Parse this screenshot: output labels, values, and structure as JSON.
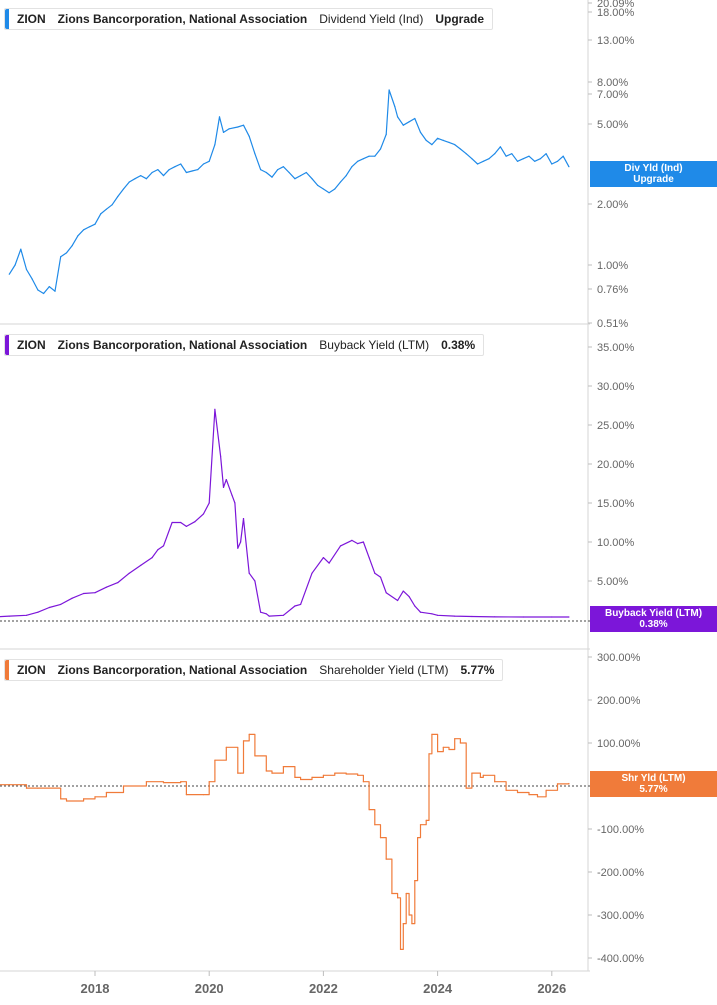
{
  "colors": {
    "dividend": "#1f8ae8",
    "buyback": "#7c16d9",
    "shareholder": "#f07b3a",
    "axis": "#9a9a9a",
    "text": "#666666"
  },
  "panels": [
    {
      "ticker": "ZION",
      "company": "Zions Bancorporation, National Association",
      "metric": "Dividend Yield (Ind)",
      "value": "Upgrade",
      "tag_lines": [
        "Div Yld (Ind)",
        "Upgrade"
      ],
      "tag_behind": "3.",
      "ticks": [
        "20.09%",
        "18.00%",
        "13.00%",
        "8.00%",
        "7.00%",
        "5.00%",
        "2.00%",
        "1.00%",
        "0.76%",
        "0.51%"
      ]
    },
    {
      "ticker": "ZION",
      "company": "Zions Bancorporation, National Association",
      "metric": "Buyback Yield (LTM)",
      "value": "0.38%",
      "tag_lines": [
        "Buyback Yield (LTM)",
        "0.38%"
      ],
      "ticks": [
        "35.00%",
        "30.00%",
        "25.00%",
        "20.00%",
        "15.00%",
        "10.00%",
        "5.00%"
      ]
    },
    {
      "ticker": "ZION",
      "company": "Zions Bancorporation, National Association",
      "metric": "Shareholder Yield (LTM)",
      "value": "5.77%",
      "tag_lines": [
        "Shr Yld (LTM)",
        "5.77%"
      ],
      "tag_behind": "0.00%",
      "ticks": [
        "300.00%",
        "200.00%",
        "100.00%",
        "-100.00%",
        "-200.00%",
        "-300.00%",
        "-400.00%"
      ]
    }
  ],
  "x_axis": {
    "labels": [
      "2018",
      "2020",
      "2022",
      "2024",
      "2026"
    ]
  },
  "chart_data": [
    {
      "type": "line",
      "scale": "log",
      "series": [
        {
          "name": "Dividend Yield (Ind)",
          "x": [
            2016.5,
            2016.6,
            2016.7,
            2016.8,
            2016.9,
            2017.0,
            2017.1,
            2017.2,
            2017.3,
            2017.4,
            2017.5,
            2017.6,
            2017.7,
            2017.8,
            2017.9,
            2018.0,
            2018.1,
            2018.2,
            2018.3,
            2018.4,
            2018.5,
            2018.6,
            2018.7,
            2018.8,
            2018.9,
            2019.0,
            2019.1,
            2019.2,
            2019.3,
            2019.4,
            2019.5,
            2019.6,
            2019.7,
            2019.8,
            2019.9,
            2020.0,
            2020.1,
            2020.18,
            2020.25,
            2020.35,
            2020.5,
            2020.6,
            2020.7,
            2020.8,
            2020.9,
            2021.0,
            2021.1,
            2021.2,
            2021.3,
            2021.4,
            2021.5,
            2021.6,
            2021.7,
            2021.8,
            2021.9,
            2022.0,
            2022.1,
            2022.2,
            2022.3,
            2022.4,
            2022.5,
            2022.6,
            2022.7,
            2022.8,
            2022.9,
            2023.0,
            2023.1,
            2023.15,
            2023.25,
            2023.3,
            2023.4,
            2023.5,
            2023.6,
            2023.7,
            2023.8,
            2023.9,
            2024.0,
            2024.1,
            2024.2,
            2024.3,
            2024.4,
            2024.5,
            2024.6,
            2024.7,
            2024.8,
            2024.9,
            2025.0,
            2025.1,
            2025.2,
            2025.3,
            2025.4,
            2025.5,
            2025.6,
            2025.7,
            2025.8,
            2025.9,
            2026.0,
            2026.1,
            2026.2,
            2026.3
          ],
          "values": [
            0.9,
            1.0,
            1.2,
            0.95,
            0.85,
            0.75,
            0.72,
            0.78,
            0.74,
            1.1,
            1.15,
            1.25,
            1.4,
            1.5,
            1.55,
            1.6,
            1.8,
            1.9,
            2.0,
            2.2,
            2.4,
            2.6,
            2.7,
            2.8,
            2.7,
            2.9,
            3.0,
            2.8,
            3.0,
            3.1,
            3.2,
            2.9,
            2.95,
            3.0,
            3.2,
            3.3,
            4.0,
            5.5,
            4.6,
            4.8,
            4.9,
            5.0,
            4.4,
            3.6,
            3.0,
            2.9,
            2.75,
            3.0,
            3.1,
            2.9,
            2.7,
            2.8,
            2.9,
            2.7,
            2.5,
            2.4,
            2.3,
            2.4,
            2.6,
            2.8,
            3.1,
            3.3,
            3.4,
            3.5,
            3.5,
            3.8,
            4.5,
            7.5,
            6.2,
            5.5,
            5.0,
            5.2,
            5.4,
            4.6,
            4.2,
            4.0,
            4.3,
            4.2,
            4.1,
            4.0,
            3.8,
            3.6,
            3.4,
            3.2,
            3.3,
            3.4,
            3.6,
            3.9,
            3.5,
            3.6,
            3.3,
            3.4,
            3.5,
            3.3,
            3.4,
            3.6,
            3.2,
            3.3,
            3.5,
            3.1
          ]
        }
      ]
    },
    {
      "type": "line",
      "series": [
        {
          "name": "Buyback Yield (LTM)",
          "x": [
            2015.4,
            2016.0,
            2016.5,
            2016.8,
            2017.0,
            2017.2,
            2017.4,
            2017.6,
            2017.8,
            2018.0,
            2018.2,
            2018.4,
            2018.6,
            2018.8,
            2019.0,
            2019.1,
            2019.2,
            2019.35,
            2019.5,
            2019.6,
            2019.75,
            2019.9,
            2020.0,
            2020.1,
            2020.2,
            2020.25,
            2020.3,
            2020.4,
            2020.45,
            2020.5,
            2020.55,
            2020.6,
            2020.7,
            2020.8,
            2020.9,
            2021.0,
            2021.05,
            2021.3,
            2021.5,
            2021.6,
            2021.8,
            2022.0,
            2022.1,
            2022.3,
            2022.5,
            2022.6,
            2022.7,
            2022.8,
            2022.9,
            2023.0,
            2023.1,
            2023.3,
            2023.4,
            2023.5,
            2023.6,
            2023.7,
            2023.9,
            2024.0,
            2024.3,
            2024.6,
            2025.0,
            2025.5,
            2026.0,
            2026.3
          ],
          "values": [
            0.2,
            0.3,
            0.5,
            0.6,
            1.0,
            1.6,
            2.0,
            2.8,
            3.4,
            3.5,
            4.2,
            4.8,
            6.0,
            7.0,
            8.0,
            9.0,
            9.5,
            12.5,
            12.5,
            12.0,
            12.6,
            13.6,
            15.0,
            27.0,
            21.0,
            17.0,
            18.0,
            16.0,
            15.0,
            9.2,
            10.0,
            13.0,
            6.0,
            5.0,
            1.0,
            0.8,
            0.5,
            0.6,
            1.8,
            2.0,
            6.0,
            8.0,
            7.3,
            9.5,
            10.2,
            9.8,
            10.0,
            8.0,
            6.0,
            5.5,
            3.5,
            2.5,
            3.7,
            3.0,
            1.8,
            1.0,
            0.8,
            0.6,
            0.5,
            0.45,
            0.4,
            0.38,
            0.38,
            0.38
          ]
        }
      ]
    },
    {
      "type": "line",
      "series": [
        {
          "name": "Shareholder Yield (LTM)",
          "x": [
            2015.4,
            2016.5,
            2016.8,
            2017.0,
            2017.4,
            2017.5,
            2017.8,
            2018.0,
            2018.2,
            2018.5,
            2018.9,
            2019.2,
            2019.5,
            2019.6,
            2019.9,
            2020.0,
            2020.1,
            2020.3,
            2020.5,
            2020.55,
            2020.6,
            2020.7,
            2020.8,
            2021.0,
            2021.1,
            2021.3,
            2021.5,
            2021.6,
            2021.8,
            2022.0,
            2022.2,
            2022.4,
            2022.6,
            2022.7,
            2022.8,
            2022.9,
            2023.0,
            2023.1,
            2023.2,
            2023.3,
            2023.35,
            2023.4,
            2023.45,
            2023.5,
            2023.55,
            2023.6,
            2023.65,
            2023.7,
            2023.8,
            2023.85,
            2023.9,
            2024.0,
            2024.1,
            2024.2,
            2024.3,
            2024.4,
            2024.5,
            2024.6,
            2024.75,
            2024.8,
            2025.0,
            2025.2,
            2025.4,
            2025.6,
            2025.75,
            2025.9,
            2026.1,
            2026.3
          ],
          "values": [
            3,
            3,
            -5,
            -5,
            -30,
            -35,
            -30,
            -25,
            -15,
            0,
            10,
            8,
            10,
            -20,
            -20,
            10,
            60,
            90,
            30,
            30,
            105,
            120,
            70,
            35,
            30,
            45,
            20,
            15,
            20,
            25,
            30,
            28,
            25,
            10,
            -55,
            -90,
            -120,
            -170,
            -250,
            -260,
            -380,
            -320,
            -250,
            -300,
            -320,
            -220,
            -120,
            -90,
            -80,
            75,
            120,
            80,
            90,
            85,
            110,
            100,
            -5,
            30,
            20,
            25,
            10,
            -10,
            -15,
            -20,
            -25,
            -10,
            5,
            5.77
          ]
        }
      ]
    }
  ]
}
